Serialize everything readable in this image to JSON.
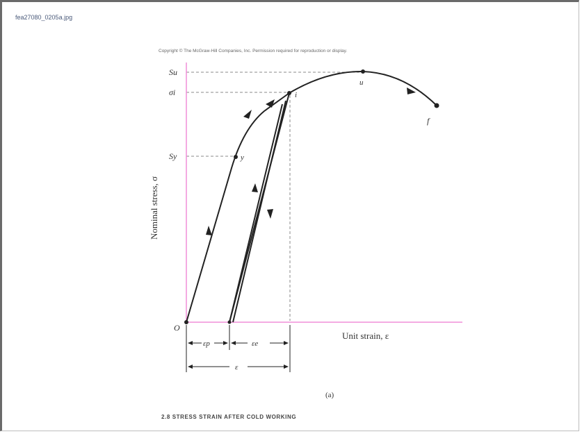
{
  "file_name": "fea27080_0205a.jpg",
  "copyright": "Copyright © The McGraw-Hill Companies, Inc. Permission required for reproduction or display.",
  "caption": "2.8 STRESS STRAIN AFTER COLD WORKING",
  "labels": {
    "su": "Su",
    "si": "σi",
    "sy": "Sy",
    "origin": "O",
    "point_u": "u",
    "point_i": "i",
    "point_y": "y",
    "point_f": "f",
    "y_axis": "Nominal stress, σ",
    "x_axis": "Unit strain, ε",
    "eps_p": "εp",
    "eps_e": "εe",
    "eps": "ε",
    "sub_label": "(a)"
  },
  "colors": {
    "axis": "#f08fd8",
    "curve": "#222222",
    "dashed": "#888888"
  }
}
